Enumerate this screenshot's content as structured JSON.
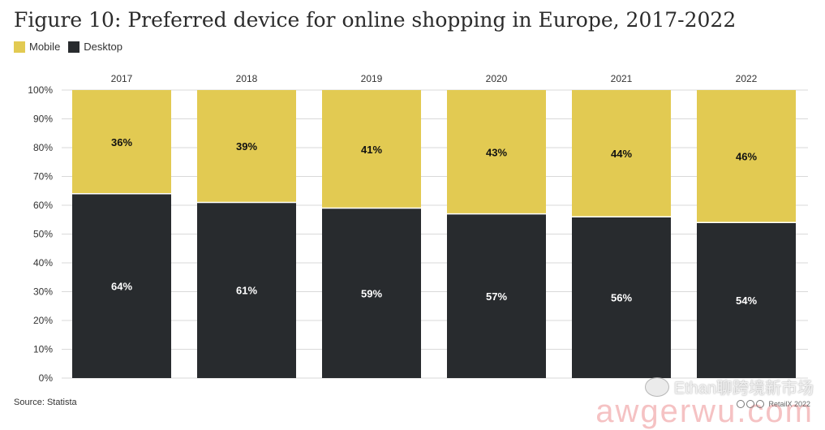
{
  "title": "Figure 10: Preferred device for online shopping in Europe, 2017-2022",
  "legend": {
    "mobile_label": "Mobile",
    "desktop_label": "Desktop"
  },
  "source": "Source: Statista",
  "credit": "RetailX 2022",
  "watermark": {
    "line1": "Ethan聊跨境新市场",
    "line2": "awgerwu.com"
  },
  "colors": {
    "mobile": "#e2ca52",
    "desktop": "#282b2e",
    "grid": "#d9d9d9"
  },
  "chart_data": {
    "type": "bar",
    "stacked": true,
    "categories": [
      "2017",
      "2018",
      "2019",
      "2020",
      "2021",
      "2022"
    ],
    "series": [
      {
        "name": "Desktop",
        "values": [
          64,
          61,
          59,
          57,
          56,
          54
        ]
      },
      {
        "name": "Mobile",
        "values": [
          36,
          39,
          41,
          43,
          44,
          46
        ]
      }
    ],
    "data_labels": {
      "Desktop": [
        "64%",
        "61%",
        "59%",
        "57%",
        "56%",
        "54%"
      ],
      "Mobile": [
        "36%",
        "39%",
        "41%",
        "43%",
        "44%",
        "46%"
      ]
    },
    "title": "Figure 10: Preferred device for online shopping in Europe, 2017-2022",
    "xlabel": "",
    "ylabel": "",
    "ylim": [
      0,
      100
    ],
    "yticks": [
      "0%",
      "10%",
      "20%",
      "30%",
      "40%",
      "50%",
      "60%",
      "70%",
      "80%",
      "90%",
      "100%"
    ],
    "grid": true,
    "legend_position": "top-left",
    "category_labels_position": "top"
  }
}
